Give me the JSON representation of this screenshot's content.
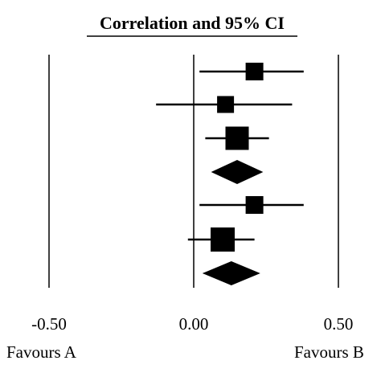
{
  "chart_data": {
    "type": "forest",
    "title": "Correlation and 95% CI",
    "x_ticks": [
      {
        "value": -0.5,
        "label": "-0.50"
      },
      {
        "value": 0.0,
        "label": "0.00"
      },
      {
        "value": 0.5,
        "label": "0.50"
      }
    ],
    "xlim": [
      -0.5,
      0.5
    ],
    "left_label": "Favours A",
    "right_label": "Favours B",
    "rows": [
      {
        "kind": "study",
        "estimate": 0.21,
        "lower": 0.02,
        "upper": 0.38,
        "weight": 1.0
      },
      {
        "kind": "study",
        "estimate": 0.11,
        "lower": -0.13,
        "upper": 0.34,
        "weight": 0.9
      },
      {
        "kind": "study",
        "estimate": 0.15,
        "lower": 0.04,
        "upper": 0.26,
        "weight": 1.7
      },
      {
        "kind": "summary",
        "estimate": 0.15,
        "lower": 0.06,
        "upper": 0.24
      },
      {
        "kind": "study",
        "estimate": 0.21,
        "lower": 0.02,
        "upper": 0.38,
        "weight": 1.0
      },
      {
        "kind": "study",
        "estimate": 0.1,
        "lower": -0.02,
        "upper": 0.21,
        "weight": 1.8
      },
      {
        "kind": "summary",
        "estimate": 0.13,
        "lower": 0.03,
        "upper": 0.23
      }
    ],
    "colors": {
      "ink": "#000000",
      "background": "#ffffff"
    }
  }
}
